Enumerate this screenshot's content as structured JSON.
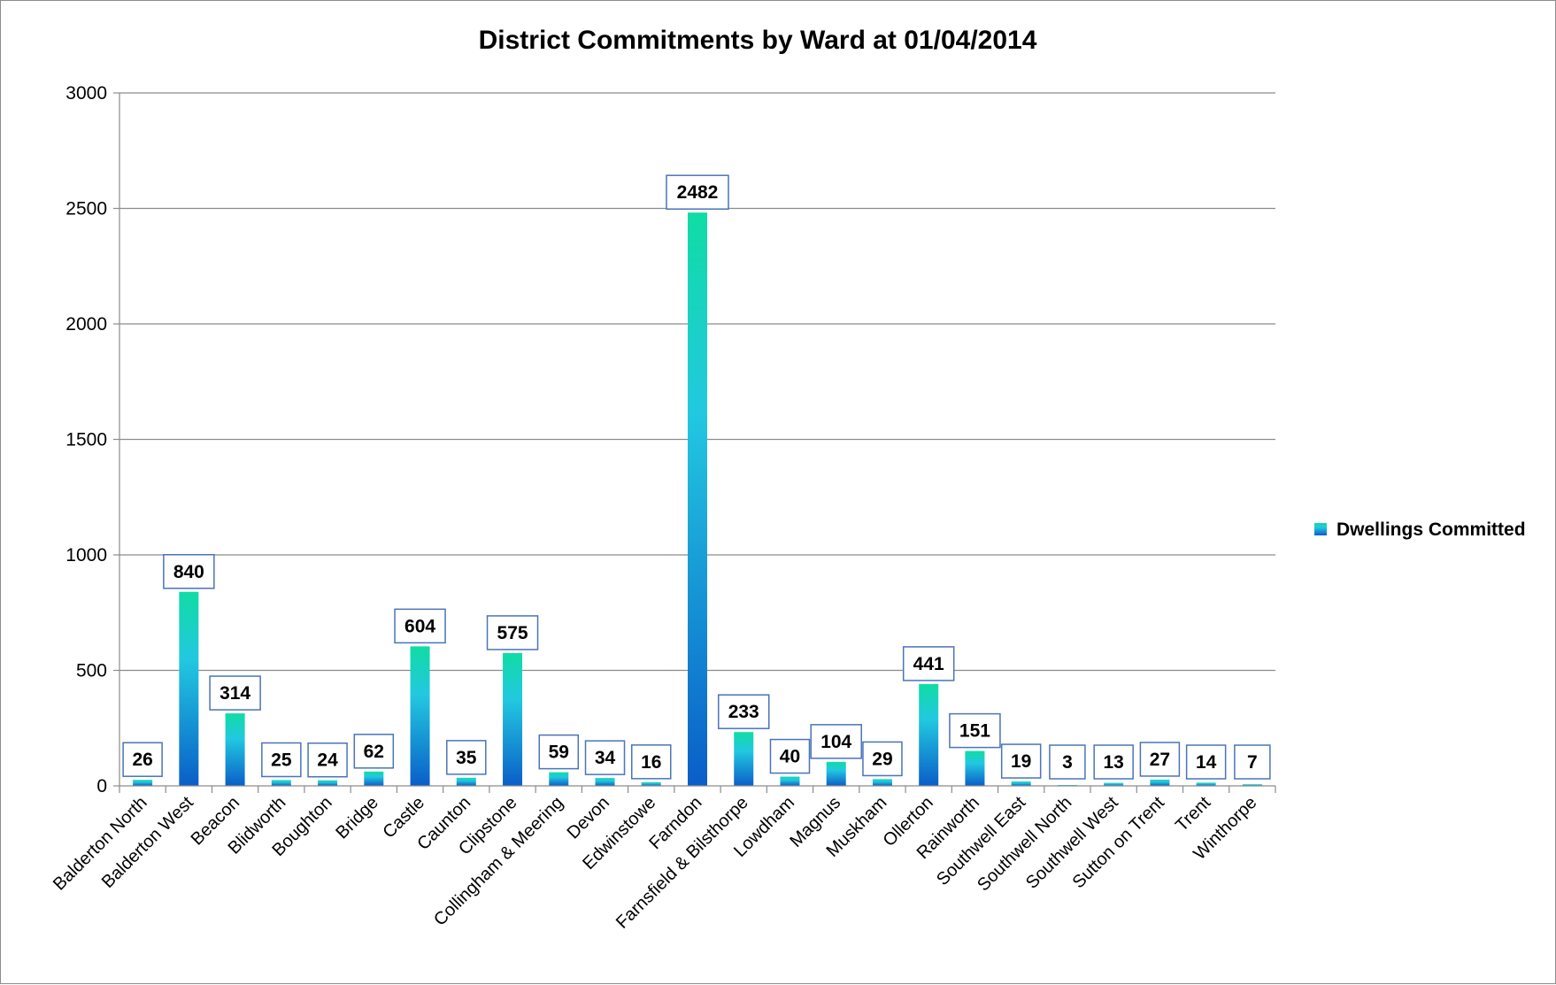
{
  "chart_data": {
    "type": "bar",
    "title": "District Commitments by Ward at 01/04/2014",
    "xlabel": "",
    "ylabel": "",
    "ylim": [
      0,
      3000
    ],
    "yticks": [
      0,
      500,
      1000,
      1500,
      2000,
      2500,
      3000
    ],
    "grid": true,
    "legend_position": "right",
    "categories": [
      "Balderton North",
      "Balderton West",
      "Beacon",
      "Blidworth",
      "Boughton",
      "Bridge",
      "Castle",
      "Caunton",
      "Clipstone",
      "Collingham & Meering",
      "Devon",
      "Edwinstowe",
      "Farndon",
      "Farnsfield & Bilsthorpe",
      "Lowdham",
      "Magnus",
      "Muskham",
      "Ollerton",
      "Rainworth",
      "Southwell East",
      "Southwell North",
      "Southwell West",
      "Sutton on Trent",
      "Trent",
      "Winthorpe"
    ],
    "series": [
      {
        "name": "Dwellings Committed",
        "values": [
          26,
          840,
          314,
          25,
          24,
          62,
          604,
          35,
          575,
          59,
          34,
          16,
          2482,
          233,
          40,
          104,
          29,
          441,
          151,
          19,
          3,
          13,
          27,
          14,
          7
        ]
      }
    ],
    "colors": {
      "bar_top": "#10dca4",
      "bar_mid": "#22c8e0",
      "bar_bottom": "#0a5ec8",
      "label_border": "#4a74b8",
      "grid": "#8c8c8c"
    }
  }
}
